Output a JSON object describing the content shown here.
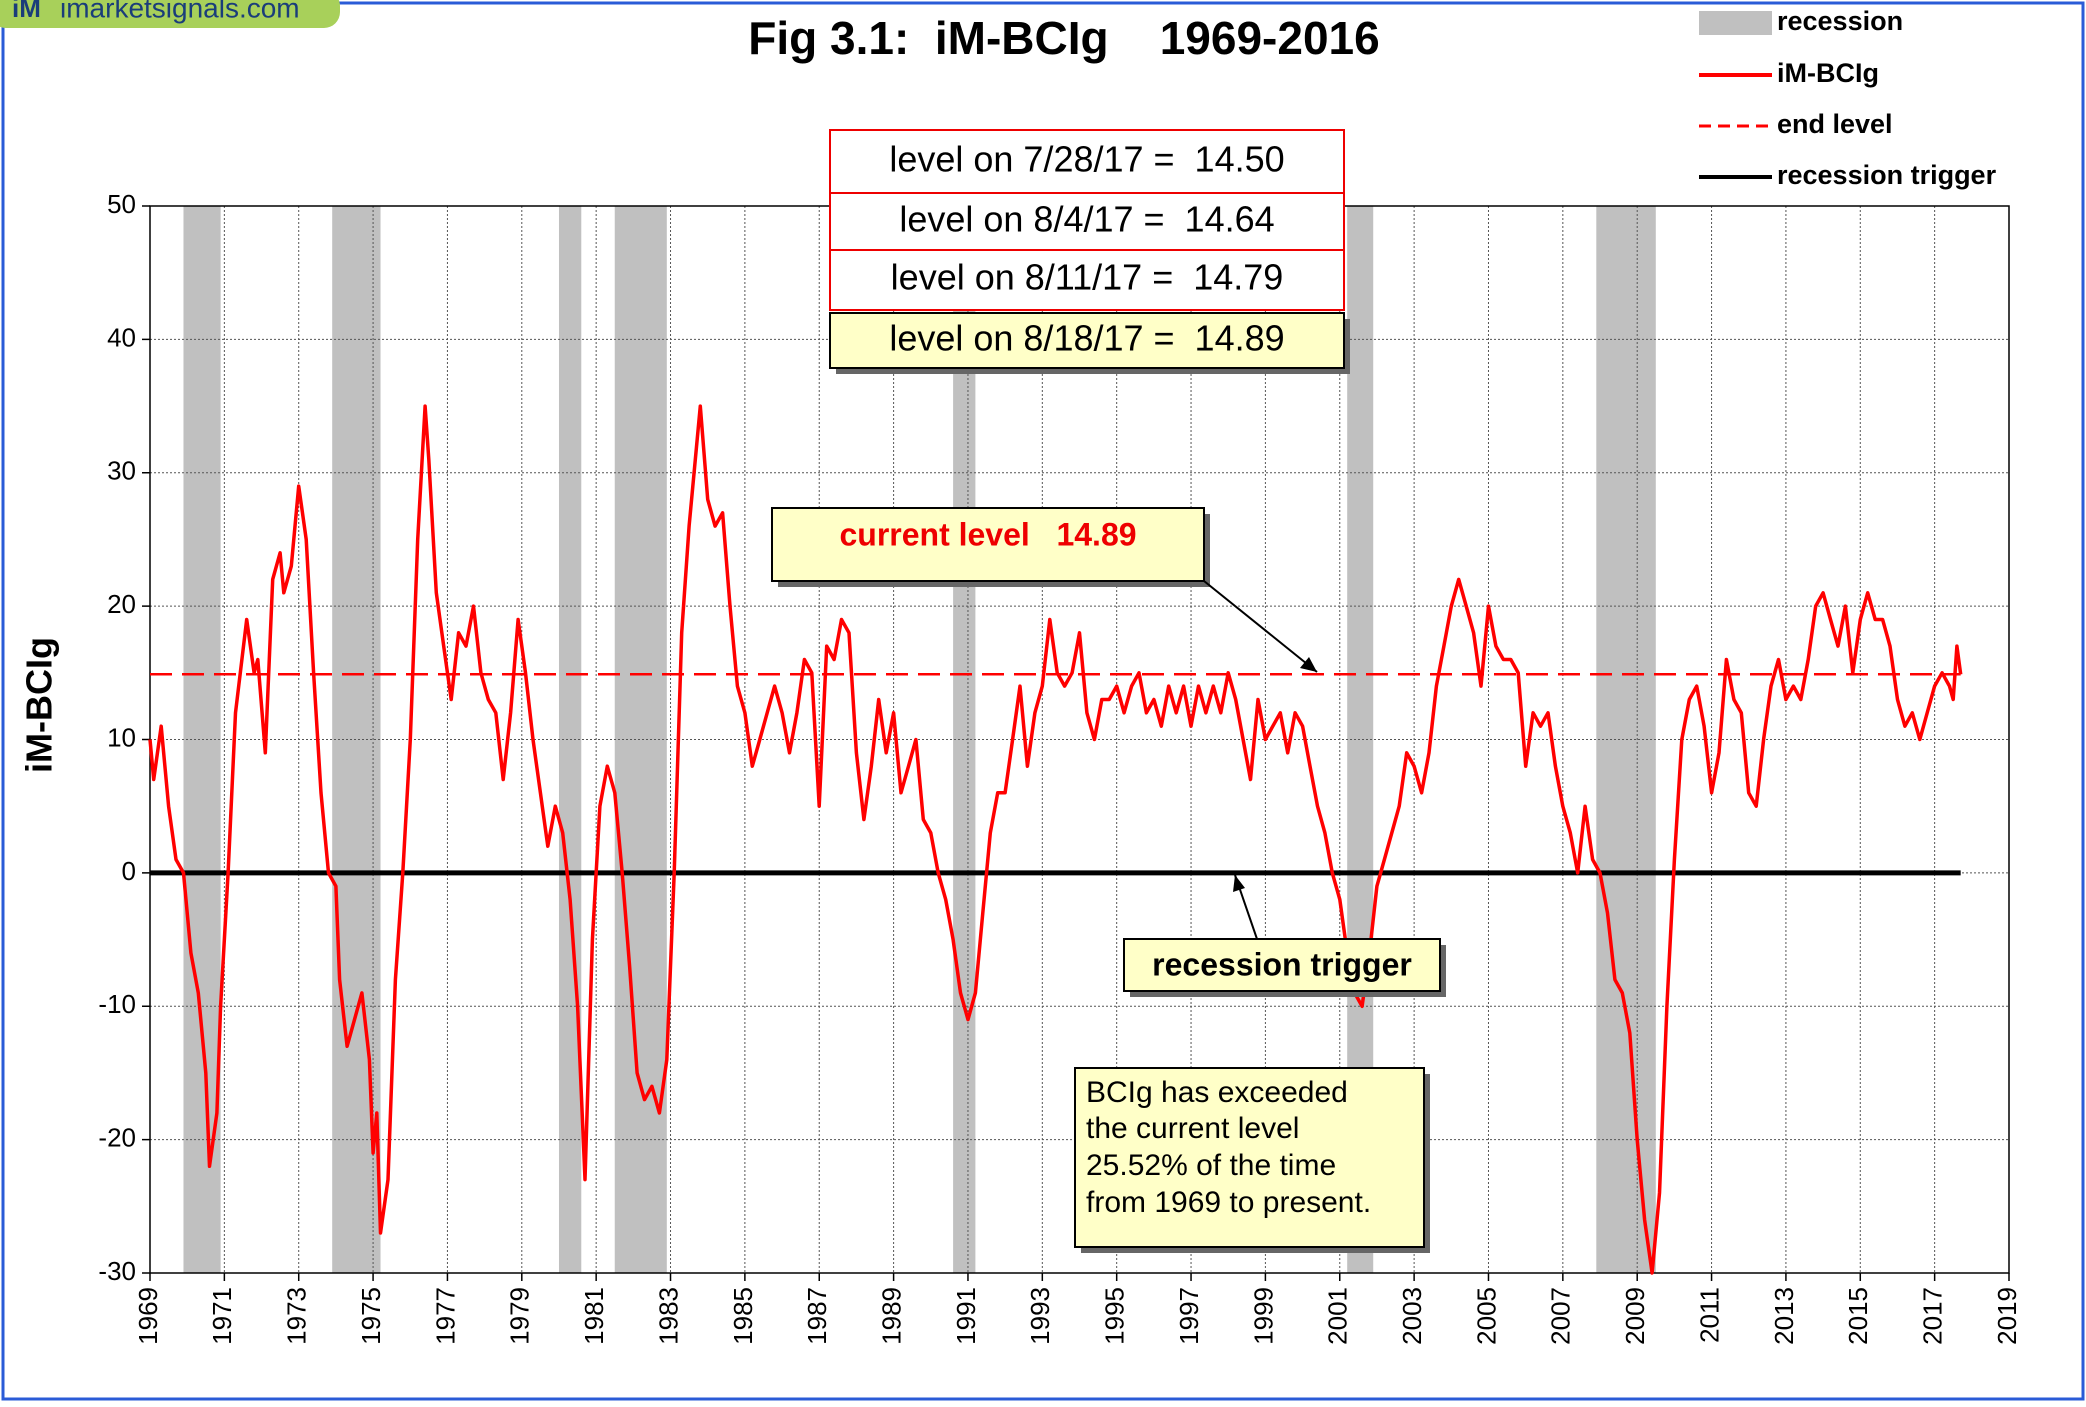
{
  "logo": {
    "mark": "iM",
    "site": "imarketsignals.com"
  },
  "chart_data": {
    "type": "line",
    "title": "Fig 3.1:  iM-BCIg    1969-2016",
    "ylabel": "iM-BCIg",
    "xlim": [
      1969,
      2019
    ],
    "xticks": [
      1969,
      1971,
      1973,
      1975,
      1977,
      1979,
      1981,
      1983,
      1985,
      1987,
      1989,
      1991,
      1993,
      1995,
      1997,
      1999,
      2001,
      2003,
      2005,
      2007,
      2009,
      2011,
      2013,
      2015,
      2017,
      2019
    ],
    "ylim": [
      -30,
      50
    ],
    "yticks": [
      -30,
      -20,
      -10,
      0,
      10,
      20,
      30,
      40,
      50
    ],
    "grid": true,
    "x": [
      1969.0,
      1969.1,
      1969.3,
      1969.5,
      1969.7,
      1969.9,
      1970.1,
      1970.3,
      1970.5,
      1970.6,
      1970.8,
      1970.9,
      1971.1,
      1971.3,
      1971.6,
      1971.8,
      1971.9,
      1972.1,
      1972.3,
      1972.5,
      1972.6,
      1972.8,
      1973.0,
      1973.2,
      1973.4,
      1973.6,
      1973.8,
      1974.0,
      1974.1,
      1974.3,
      1974.5,
      1974.7,
      1974.9,
      1975.0,
      1975.1,
      1975.2,
      1975.4,
      1975.6,
      1975.8,
      1976.0,
      1976.2,
      1976.4,
      1976.5,
      1976.7,
      1976.9,
      1977.1,
      1977.3,
      1977.5,
      1977.7,
      1977.9,
      1978.1,
      1978.3,
      1978.5,
      1978.7,
      1978.9,
      1979.1,
      1979.3,
      1979.5,
      1979.7,
      1979.9,
      1980.1,
      1980.3,
      1980.5,
      1980.7,
      1980.9,
      1981.1,
      1981.3,
      1981.5,
      1981.7,
      1981.9,
      1982.1,
      1982.3,
      1982.5,
      1982.7,
      1982.9,
      1983.1,
      1983.3,
      1983.5,
      1983.8,
      1984.0,
      1984.2,
      1984.4,
      1984.6,
      1984.8,
      1985.0,
      1985.2,
      1985.4,
      1985.6,
      1985.8,
      1986.0,
      1986.2,
      1986.4,
      1986.6,
      1986.8,
      1987.0,
      1987.2,
      1987.4,
      1987.6,
      1987.8,
      1988.0,
      1988.2,
      1988.4,
      1988.6,
      1988.8,
      1989.0,
      1989.2,
      1989.4,
      1989.6,
      1989.8,
      1990.0,
      1990.2,
      1990.4,
      1990.6,
      1990.8,
      1991.0,
      1991.2,
      1991.4,
      1991.6,
      1991.8,
      1992.0,
      1992.2,
      1992.4,
      1992.6,
      1992.8,
      1993.0,
      1993.2,
      1993.4,
      1993.6,
      1993.8,
      1994.0,
      1994.2,
      1994.4,
      1994.6,
      1994.8,
      1995.0,
      1995.2,
      1995.4,
      1995.6,
      1995.8,
      1996.0,
      1996.2,
      1996.4,
      1996.6,
      1996.8,
      1997.0,
      1997.2,
      1997.4,
      1997.6,
      1997.8,
      1998.0,
      1998.2,
      1998.4,
      1998.6,
      1998.8,
      1999.0,
      1999.2,
      1999.4,
      1999.6,
      1999.8,
      2000.0,
      2000.2,
      2000.4,
      2000.6,
      2000.8,
      2001.0,
      2001.2,
      2001.4,
      2001.6,
      2001.8,
      2002.0,
      2002.2,
      2002.4,
      2002.6,
      2002.8,
      2003.0,
      2003.2,
      2003.4,
      2003.6,
      2003.8,
      2004.0,
      2004.2,
      2004.4,
      2004.6,
      2004.8,
      2005.0,
      2005.2,
      2005.4,
      2005.6,
      2005.8,
      2006.0,
      2006.2,
      2006.4,
      2006.6,
      2006.8,
      2007.0,
      2007.2,
      2007.4,
      2007.6,
      2007.8,
      2008.0,
      2008.2,
      2008.4,
      2008.6,
      2008.8,
      2009.0,
      2009.2,
      2009.4,
      2009.6,
      2009.8,
      2010.0,
      2010.2,
      2010.4,
      2010.6,
      2010.8,
      2011.0,
      2011.2,
      2011.4,
      2011.6,
      2011.8,
      2012.0,
      2012.2,
      2012.4,
      2012.6,
      2012.8,
      2013.0,
      2013.2,
      2013.4,
      2013.6,
      2013.8,
      2014.0,
      2014.2,
      2014.4,
      2014.6,
      2014.8,
      2015.0,
      2015.2,
      2015.4,
      2015.6,
      2015.8,
      2016.0,
      2016.2,
      2016.4,
      2016.6,
      2016.8,
      2017.0,
      2017.2,
      2017.4,
      2017.5,
      2017.6,
      2017.7
    ],
    "series": [
      {
        "name": "iM-BCIg",
        "color": "#ff0000",
        "values": [
          10,
          7,
          11,
          5,
          1,
          0,
          -6,
          -9,
          -15,
          -22,
          -18,
          -10,
          0,
          12,
          19,
          15,
          16,
          9,
          22,
          24,
          21,
          23,
          29,
          25,
          15,
          6,
          0,
          -1,
          -8,
          -13,
          -11,
          -9,
          -14,
          -21,
          -18,
          -27,
          -23,
          -8,
          0,
          10,
          25,
          35,
          31,
          21,
          17,
          13,
          18,
          17,
          20,
          15,
          13,
          12,
          7,
          12,
          19,
          15,
          10,
          6,
          2,
          5,
          3,
          -2,
          -10,
          -23,
          -5,
          5,
          8,
          6,
          0,
          -7,
          -15,
          -17,
          -16,
          -18,
          -14,
          0,
          18,
          26,
          35,
          28,
          26,
          27,
          20,
          14,
          12,
          8,
          10,
          12,
          14,
          12,
          9,
          12,
          16,
          15,
          5,
          17,
          16,
          19,
          18,
          9,
          4,
          8,
          13,
          9,
          12,
          6,
          8,
          10,
          4,
          3,
          0,
          -2,
          -5,
          -9,
          -11,
          -9,
          -3,
          3,
          6,
          6,
          10,
          14,
          8,
          12,
          14,
          19,
          15,
          14,
          15,
          18,
          12,
          10,
          13,
          13,
          14,
          12,
          14,
          15,
          12,
          13,
          11,
          14,
          12,
          14,
          11,
          14,
          12,
          14,
          12,
          15,
          13,
          10,
          7,
          13,
          10,
          11,
          12,
          9,
          12,
          11,
          8,
          5,
          3,
          0,
          -2,
          -6,
          -9,
          -10,
          -6,
          -1,
          1,
          3,
          5,
          9,
          8,
          6,
          9,
          14,
          17,
          20,
          22,
          20,
          18,
          14,
          20,
          17,
          16,
          16,
          15,
          8,
          12,
          11,
          12,
          8,
          5,
          3,
          0,
          5,
          1,
          0,
          -3,
          -8,
          -9,
          -12,
          -20,
          -26,
          -30,
          -24,
          -10,
          1,
          10,
          13,
          14,
          11,
          6,
          9,
          16,
          13,
          12,
          6,
          5,
          10,
          14,
          16,
          13,
          14,
          13,
          16,
          20,
          21,
          19,
          17,
          20,
          15,
          19,
          21,
          19,
          19,
          17,
          13,
          11,
          12,
          10,
          12,
          14,
          15,
          14,
          13,
          17,
          14.89
        ]
      }
    ],
    "recessions": {
      "name": "recession",
      "color": "#c0c0c0",
      "periods": [
        [
          1969.9,
          1970.9
        ],
        [
          1973.9,
          1975.2
        ],
        [
          1980.0,
          1980.6
        ],
        [
          1981.5,
          1982.9
        ],
        [
          1990.6,
          1991.2
        ],
        [
          2001.2,
          2001.9
        ],
        [
          2007.9,
          2009.5
        ]
      ]
    },
    "end_level": {
      "name": "end level",
      "value": 14.89,
      "color": "#ff0000"
    },
    "trigger": {
      "name": "recession trigger",
      "value": 0,
      "color": "#000000"
    },
    "level_boxes": [
      "level on 7/28/17 =  14.50",
      "level on 8/4/17 =  14.64",
      "level on 8/11/17 =  14.79",
      "level on 8/18/17 =  14.89"
    ],
    "current_level_label": "current level   14.89",
    "trigger_label": "recession trigger",
    "note": [
      "BCIg has exceeded",
      "the current level",
      "25.52% of the time",
      "from 1969 to present."
    ]
  }
}
